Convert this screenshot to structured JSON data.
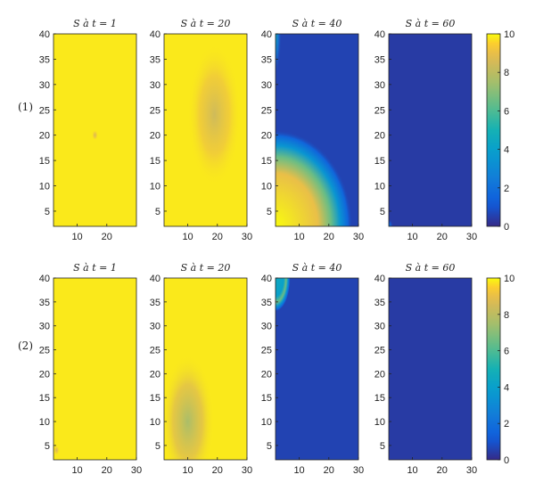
{
  "figure": {
    "row_labels": [
      "(1)",
      "(2)"
    ],
    "panel_titles": [
      "S à t = 1",
      "S à t = 20",
      "S à t = 40",
      "S à t = 60"
    ]
  },
  "chart_data": [
    {
      "type": "heatmap",
      "row": "(1)",
      "colormap": "parula",
      "colorbar": {
        "range": [
          0,
          10
        ],
        "ticks": [
          0,
          2,
          4,
          6,
          8,
          10
        ]
      },
      "panels": [
        {
          "title": "S à t = 1",
          "xlim": [
            2,
            30
          ],
          "ylim": [
            2,
            40
          ],
          "xticks": [
            10,
            20
          ],
          "yticks": [
            5,
            10,
            15,
            20,
            25,
            30,
            35,
            40
          ],
          "background": 9.8,
          "features": [
            {
              "kind": "spot",
              "x": 16,
              "y": 20,
              "value": 8.5,
              "rx": 1,
              "ry": 1
            }
          ]
        },
        {
          "title": "S à t = 20",
          "xlim": [
            2,
            30
          ],
          "ylim": [
            2,
            40
          ],
          "xticks": [
            10,
            20,
            30
          ],
          "yticks": [
            5,
            10,
            15,
            20,
            25,
            30,
            35,
            40
          ],
          "background": 9.8,
          "features": [
            {
              "kind": "blob",
              "x": 19,
              "y": 24,
              "value": 8.4,
              "rx": 9,
              "ry": 14
            }
          ]
        },
        {
          "title": "S à t = 40",
          "xlim": [
            2,
            30
          ],
          "ylim": [
            2,
            40
          ],
          "xticks": [
            10,
            20,
            30
          ],
          "yticks": [
            5,
            10,
            15,
            20,
            25,
            30,
            35,
            40
          ],
          "background": 0.6,
          "features": [
            {
              "kind": "corner",
              "x": 2,
              "y": 2,
              "value": 10,
              "rx": 26,
              "ry": 19
            },
            {
              "kind": "strip",
              "x": 2,
              "y": 40,
              "value": 4.5,
              "rx": 2,
              "ry": 8
            }
          ]
        },
        {
          "title": "S à t = 60",
          "xlim": [
            2,
            30
          ],
          "ylim": [
            2,
            40
          ],
          "xticks": [
            10,
            20,
            30
          ],
          "yticks": [
            5,
            10,
            15,
            20,
            25,
            30,
            35,
            40
          ],
          "background": 0.4,
          "features": [
            {
              "kind": "spot",
              "x": 2,
              "y": 2,
              "value": 2.5,
              "rx": 1.5,
              "ry": 1.5
            }
          ]
        }
      ]
    },
    {
      "type": "heatmap",
      "row": "(2)",
      "colormap": "parula",
      "colorbar": {
        "range": [
          0,
          10
        ],
        "ticks": [
          0,
          2,
          4,
          6,
          8,
          10
        ]
      },
      "panels": [
        {
          "title": "S à t = 1",
          "xlim": [
            2,
            30
          ],
          "ylim": [
            2,
            40
          ],
          "xticks": [
            10,
            20,
            30
          ],
          "yticks": [
            5,
            10,
            15,
            20,
            25,
            30,
            35,
            40
          ],
          "background": 9.8,
          "features": [
            {
              "kind": "spot",
              "x": 3,
              "y": 4,
              "value": 8.5,
              "rx": 1,
              "ry": 1
            }
          ]
        },
        {
          "title": "S à t = 20",
          "xlim": [
            2,
            30
          ],
          "ylim": [
            2,
            40
          ],
          "xticks": [
            10,
            20,
            30
          ],
          "yticks": [
            5,
            10,
            15,
            20,
            25,
            30,
            35,
            40
          ],
          "background": 9.8,
          "features": [
            {
              "kind": "blob",
              "x": 10,
              "y": 10,
              "value": 7.6,
              "rx": 9,
              "ry": 14
            }
          ]
        },
        {
          "title": "S à t = 40",
          "xlim": [
            2,
            30
          ],
          "ylim": [
            2,
            40
          ],
          "xticks": [
            10,
            20,
            30
          ],
          "yticks": [
            5,
            10,
            15,
            20,
            25,
            30,
            35,
            40
          ],
          "background": 0.6,
          "features": [
            {
              "kind": "corner",
              "x": 2,
              "y": 40,
              "value": 4.5,
              "rx": 5,
              "ry": 7
            }
          ]
        },
        {
          "title": "S à t = 60",
          "xlim": [
            2,
            30
          ],
          "ylim": [
            2,
            40
          ],
          "xticks": [
            10,
            20,
            30
          ],
          "yticks": [
            5,
            10,
            15,
            20,
            25,
            30,
            35,
            40
          ],
          "background": 0.4,
          "features": []
        }
      ]
    }
  ]
}
